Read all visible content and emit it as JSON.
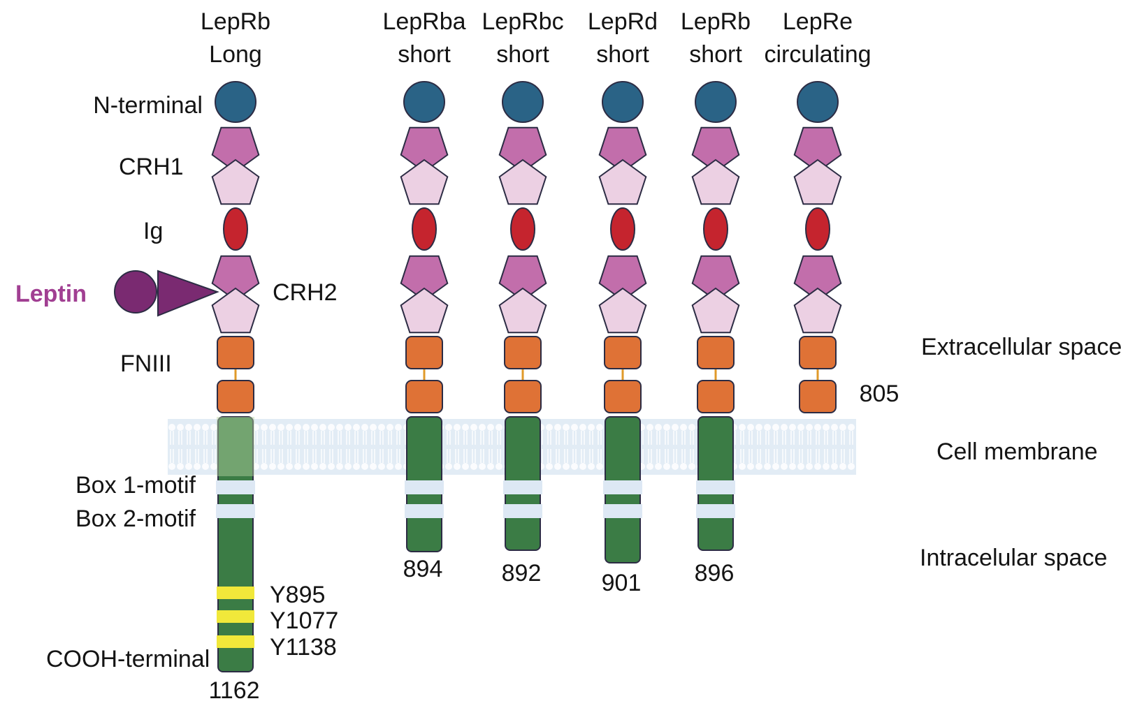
{
  "columns": [
    {
      "name": "LepRb",
      "subtitle": "Long",
      "end_number": "1162",
      "domains": "full"
    },
    {
      "name": "LepRba",
      "subtitle": "short",
      "end_number": "894",
      "domains": "full"
    },
    {
      "name": "LepRbc",
      "subtitle": "short",
      "end_number": "892",
      "domains": "full"
    },
    {
      "name": "LepRd",
      "subtitle": "short",
      "end_number": "901",
      "domains": "full"
    },
    {
      "name": "LepRb",
      "subtitle": "short",
      "end_number": "896",
      "domains": "full"
    },
    {
      "name": "LepRe",
      "subtitle": "circulating",
      "end_number": "805",
      "domains": "extracellular-only"
    }
  ],
  "domain_labels": {
    "n_terminal": "N-terminal",
    "crh1": "CRH1",
    "ig": "Ig",
    "crh2": "CRH2",
    "fniii": "FNIII",
    "box1": "Box 1-motif",
    "box2": "Box 2-motif",
    "cooh": "COOH-terminal"
  },
  "leptin_label": "Leptin",
  "tyrosines": [
    "Y895",
    "Y1077",
    "Y1138"
  ],
  "regions": {
    "extracellular": "Extracellular space",
    "membrane": "Cell membrane",
    "intracellular": "Intracelular space"
  },
  "colors": {
    "n_terminal": "#2a6386",
    "crh_dark": "#c26eab",
    "crh_light": "#ecd0e3",
    "ig": "#c5242e",
    "fniii": "#df7236",
    "linker": "#e09a2a",
    "intracellular": "#3b7c45",
    "box": "#dde8f4",
    "tyrosine": "#f1e83a",
    "leptin": "#7a2a71",
    "leptin_label": "#a13f92",
    "outline": "#2c2c44",
    "membrane": "#d6e5f0"
  }
}
